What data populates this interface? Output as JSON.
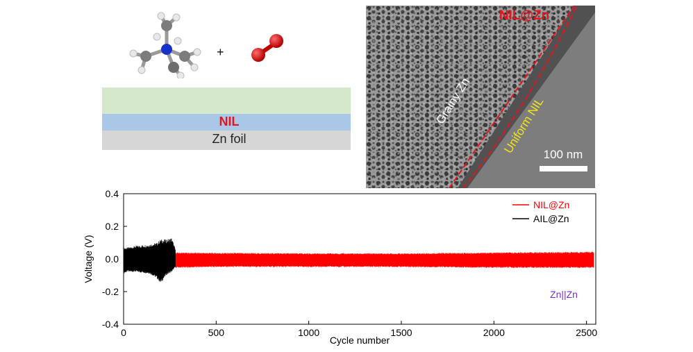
{
  "schematic": {
    "plus_sign": "+",
    "nil_label": "NIL",
    "foil_label": "Zn foil",
    "colors": {
      "top_layer": "#d6e8cc",
      "nil_layer": "#a9c8e8",
      "foil_layer": "#d6d6d6",
      "nil_text": "#e8141b"
    },
    "molecule_icons": [
      "tetramethylammonium-molecule-icon",
      "oxygen-molecule-icon"
    ]
  },
  "tem_image": {
    "label_nilzn": "NIL@Zn",
    "label_grainy": "Grainy Zn",
    "label_uniform": "Uniform NIL",
    "scale_bar": "100 nm",
    "colors": {
      "nilzn_text": "#e8141b",
      "uniform_text": "#f2e61a",
      "boundary_lines": "#e8141b"
    }
  },
  "chart_data": {
    "type": "line",
    "xlabel": "Cycle number",
    "ylabel": "Voltage (V)",
    "xlim": [
      0,
      2550
    ],
    "ylim": [
      -0.4,
      0.4
    ],
    "xticks": [
      0,
      500,
      1000,
      1500,
      2000,
      2500
    ],
    "yticks": [
      0.4,
      0.2,
      0.0,
      -0.2,
      -0.4
    ],
    "ytick_labels": [
      "0.4",
      "0.2",
      "0.0",
      "-0.2",
      "-0.4"
    ],
    "legend_position": "top-right",
    "annotation": "Zn||Zn",
    "series": [
      {
        "name": "NIL@Zn",
        "color": "#ff0000",
        "x": [
          0,
          280,
          500,
          1000,
          1500,
          2000,
          2540
        ],
        "y_upper": [
          0.04,
          0.04,
          0.038,
          0.035,
          0.035,
          0.04,
          0.045
        ],
        "y_lower": [
          -0.06,
          -0.055,
          -0.05,
          -0.05,
          -0.05,
          -0.055,
          -0.055
        ]
      },
      {
        "name": "AIL@Zn",
        "color": "#000000",
        "x": [
          0,
          20,
          60,
          100,
          140,
          180,
          200,
          230,
          260,
          280
        ],
        "y_upper": [
          0.07,
          0.07,
          0.08,
          0.085,
          0.09,
          0.1,
          0.12,
          0.12,
          0.13,
          0.06
        ],
        "y_lower": [
          -0.09,
          -0.08,
          -0.08,
          -0.085,
          -0.09,
          -0.12,
          -0.15,
          -0.1,
          -0.08,
          -0.05
        ]
      }
    ],
    "colors": {
      "annotation": "#7a2fd0",
      "axis": "#000000"
    }
  }
}
